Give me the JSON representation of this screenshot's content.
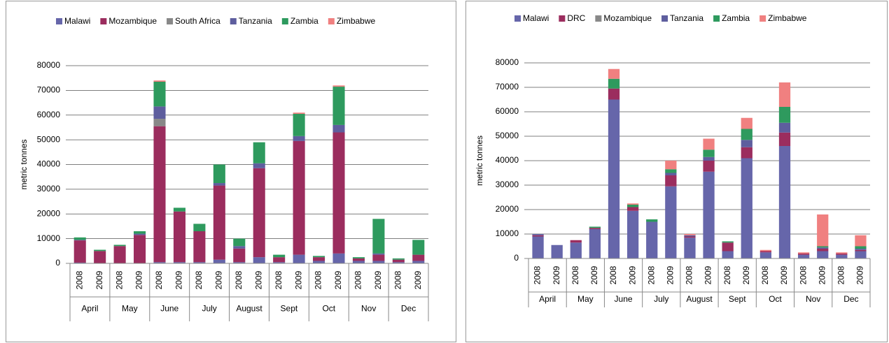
{
  "chart_data": [
    {
      "type": "bar",
      "stacked": true,
      "y_label": "metric tonnes",
      "categories": [
        "2008",
        "2009",
        "2008",
        "2009",
        "2008",
        "2009",
        "2008",
        "2009",
        "2008",
        "2009",
        "2008",
        "2009",
        "2008",
        "2009",
        "2008",
        "2009",
        "2008",
        "2009"
      ],
      "groups": [
        "April",
        "May",
        "June",
        "July",
        "August",
        "Sept",
        "Oct",
        "Nov",
        "Dec"
      ],
      "ylim": [
        0,
        80000
      ],
      "yticks": [
        0,
        10000,
        20000,
        30000,
        40000,
        50000,
        60000,
        70000,
        80000
      ],
      "grid": true,
      "legend": "top",
      "series": [
        {
          "name": "Malawi",
          "color": "#6666aa",
          "values": [
            300,
            0,
            0,
            0,
            500,
            500,
            500,
            1500,
            500,
            2500,
            500,
            3500,
            1000,
            4000,
            1000,
            1000,
            500,
            1000
          ]
        },
        {
          "name": "Mozambique",
          "color": "#9b2d5e",
          "values": [
            9000,
            5000,
            7000,
            11500,
            55000,
            20500,
            12500,
            30000,
            5500,
            36000,
            2000,
            46000,
            1500,
            49000,
            1000,
            2500,
            1000,
            2500
          ]
        },
        {
          "name": "South Africa",
          "color": "#888888",
          "values": [
            0,
            0,
            0,
            0,
            3000,
            0,
            0,
            0,
            0,
            0,
            0,
            0,
            0,
            0,
            0,
            0,
            0,
            0
          ]
        },
        {
          "name": "Tanzania",
          "color": "#5e5e9e",
          "values": [
            200,
            0,
            0,
            500,
            5000,
            0,
            0,
            1000,
            1000,
            2000,
            0,
            2000,
            0,
            3000,
            0,
            500,
            0,
            0
          ]
        },
        {
          "name": "Zambia",
          "color": "#2e9a5e",
          "values": [
            1000,
            500,
            500,
            1000,
            10000,
            1500,
            3000,
            7500,
            3000,
            8500,
            1000,
            9000,
            500,
            15500,
            500,
            14000,
            500,
            6000
          ]
        },
        {
          "name": "Zimbabwe",
          "color": "#f08080",
          "values": [
            0,
            0,
            0,
            0,
            500,
            0,
            0,
            0,
            0,
            0,
            0,
            500,
            0,
            500,
            0,
            0,
            0,
            0
          ]
        }
      ]
    },
    {
      "type": "bar",
      "stacked": true,
      "y_label": "metric tonnes",
      "categories": [
        "2008",
        "2009",
        "2008",
        "2009",
        "2008",
        "2009",
        "2008",
        "2009",
        "2008",
        "2009",
        "2008",
        "2009",
        "2008",
        "2009",
        "2008",
        "2009",
        "2008",
        "2009"
      ],
      "groups": [
        "April",
        "May",
        "June",
        "July",
        "August",
        "Sept",
        "Oct",
        "Nov",
        "Dec"
      ],
      "ylim": [
        0,
        80000
      ],
      "yticks": [
        0,
        10000,
        20000,
        30000,
        40000,
        50000,
        60000,
        70000,
        80000
      ],
      "grid": true,
      "legend": "top",
      "series": [
        {
          "name": "Malawi",
          "color": "#6666aa",
          "values": [
            9000,
            5500,
            6500,
            12000,
            65000,
            19500,
            15000,
            29500,
            8500,
            35500,
            3000,
            41000,
            2500,
            46000,
            1500,
            3000,
            1500,
            3000
          ]
        },
        {
          "name": "DRC",
          "color": "#9b2d5e",
          "values": [
            500,
            0,
            1000,
            500,
            4500,
            1500,
            0,
            4500,
            500,
            4500,
            3500,
            4500,
            500,
            5500,
            500,
            1000,
            500,
            500
          ]
        },
        {
          "name": "Mozambique",
          "color": "#888888",
          "values": [
            0,
            0,
            0,
            0,
            0,
            0,
            0,
            0,
            0,
            0,
            0,
            0,
            0,
            0,
            0,
            0,
            0,
            0
          ]
        },
        {
          "name": "Tanzania",
          "color": "#5e5e9e",
          "values": [
            500,
            0,
            0,
            0,
            0,
            0,
            0,
            1000,
            500,
            1500,
            0,
            3000,
            0,
            4000,
            0,
            500,
            0,
            500
          ]
        },
        {
          "name": "Zambia",
          "color": "#2e9a5e",
          "values": [
            0,
            0,
            0,
            500,
            4000,
            1000,
            1000,
            1500,
            0,
            3000,
            500,
            4500,
            0,
            6500,
            0,
            500,
            0,
            1000
          ]
        },
        {
          "name": "Zimbabwe",
          "color": "#f08080",
          "values": [
            0,
            0,
            0,
            0,
            4000,
            500,
            0,
            3500,
            500,
            4500,
            0,
            4500,
            500,
            10000,
            500,
            13000,
            500,
            4500
          ]
        }
      ]
    }
  ]
}
